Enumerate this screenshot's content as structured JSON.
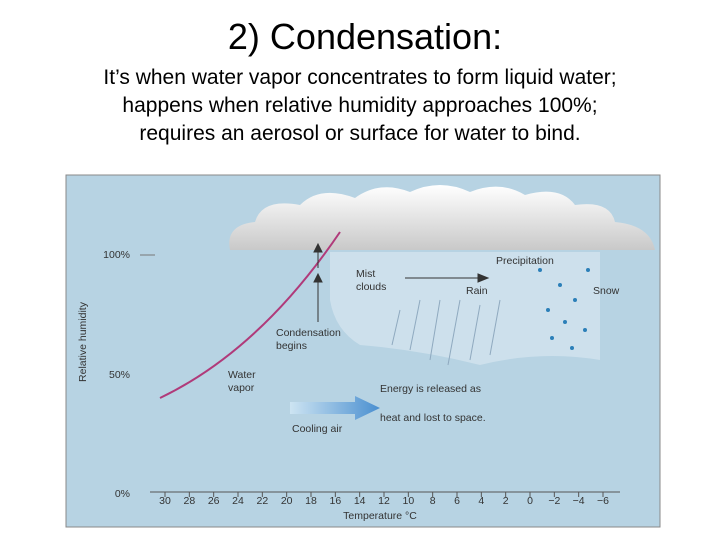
{
  "title": "2) Condensation:",
  "body": [
    "It’s when water vapor concentrates to form liquid water;",
    "happens when relative humidity approaches 100%;",
    "requires an aerosol or surface for water to bind."
  ],
  "figure": {
    "y_axis_label": "Relative humidity",
    "y_ticks": [
      "100%",
      "50%",
      "0%"
    ],
    "x_axis_label": "Temperature °C",
    "x_ticks": [
      "30",
      "28",
      "26",
      "24",
      "22",
      "20",
      "18",
      "16",
      "14",
      "12",
      "10",
      "8",
      "6",
      "4",
      "2",
      "0",
      "−2",
      "−4",
      "−6"
    ],
    "labels": [
      [
        "Mist",
        "clouds"
      ],
      [
        "Precipitation"
      ],
      [
        "Rain"
      ],
      [
        "Snow"
      ],
      [
        "Condensation",
        "begins"
      ],
      [
        "Water",
        "vapor"
      ],
      [
        "Cooling air"
      ]
    ],
    "annotation": [
      "Energy is released as",
      "heat and lost to space."
    ]
  }
}
